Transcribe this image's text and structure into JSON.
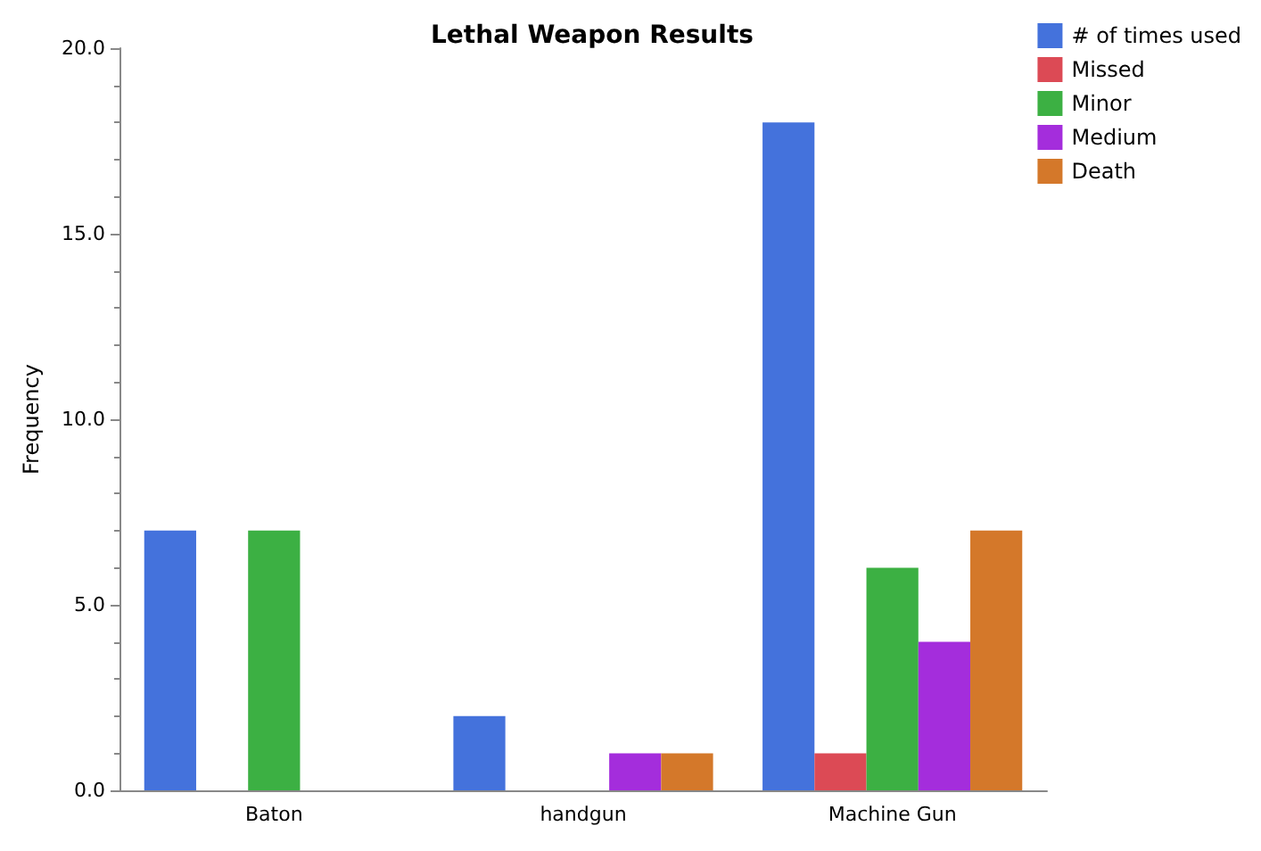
{
  "chart_data": {
    "type": "bar",
    "title": "Lethal Weapon Results",
    "ylabel": "Frequency",
    "categories": [
      "Baton",
      "handgun",
      "Machine Gun"
    ],
    "series": [
      {
        "name": "# of times used",
        "color": "#4472dc",
        "values": [
          7,
          2,
          18
        ]
      },
      {
        "name": "Missed",
        "color": "#dc4a55",
        "values": [
          0,
          0,
          1
        ]
      },
      {
        "name": "Minor",
        "color": "#3cb043",
        "values": [
          7,
          0,
          6
        ]
      },
      {
        "name": "Medium",
        "color": "#a42ddc",
        "values": [
          0,
          1,
          4
        ]
      },
      {
        "name": "Death",
        "color": "#d4782a",
        "values": [
          0,
          1,
          7
        ]
      }
    ],
    "ylim": [
      0,
      20
    ],
    "yticks": [
      {
        "value": 0,
        "label": "0.0"
      },
      {
        "value": 5,
        "label": "5.0"
      },
      {
        "value": 10,
        "label": "10.0"
      },
      {
        "value": 15,
        "label": "15.0"
      },
      {
        "value": 20,
        "label": "20.0"
      }
    ],
    "grid": false,
    "legend": "top right"
  }
}
